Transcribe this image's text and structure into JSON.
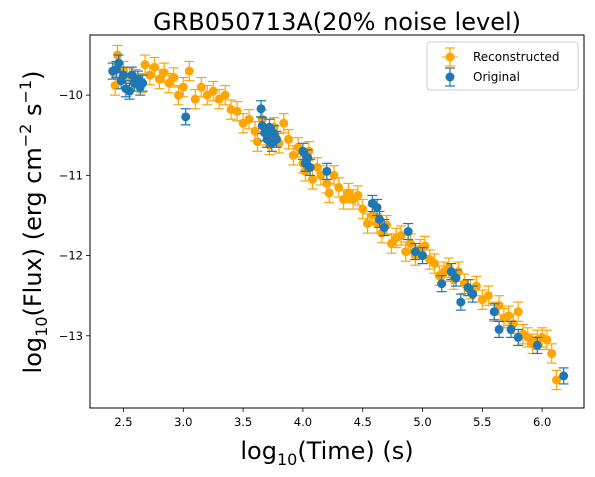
{
  "chart_data": {
    "type": "scatter",
    "title": "GRB050713A(20% noise level)",
    "xlabel": "log10(Time) (s)",
    "xlabel_parts": {
      "pre": "log",
      "sub": "10",
      "post": "(Time) (s)"
    },
    "ylabel": "log10(Flux) (erg cm^-2 s^-1)",
    "ylabel_parts": {
      "pre": "log",
      "sub": "10",
      "mid": "(Flux) (erg cm",
      "sup1": "−2",
      "mid2": " s",
      "sup2": "−1",
      "post": ")"
    },
    "xlim": [
      2.22,
      6.35
    ],
    "ylim": [
      -13.9,
      -9.25
    ],
    "xticks": [
      2.5,
      3.0,
      3.5,
      4.0,
      4.5,
      5.0,
      5.5,
      6.0
    ],
    "xtick_labels": [
      "2.5",
      "3.0",
      "3.5",
      "4.0",
      "4.5",
      "5.0",
      "5.5",
      "6.0"
    ],
    "yticks": [
      -10,
      -11,
      -12,
      -13
    ],
    "ytick_labels": [
      "−10",
      "−11",
      "−12",
      "−13"
    ],
    "grid": false,
    "legend_position": "top-right",
    "series": [
      {
        "name": "Reconstructed",
        "color": "#FFA500",
        "err": 0.12,
        "points": [
          [
            2.43,
            -9.88
          ],
          [
            2.45,
            -9.5
          ],
          [
            2.5,
            -9.7
          ],
          [
            2.55,
            -9.78
          ],
          [
            2.6,
            -9.8
          ],
          [
            2.65,
            -9.85
          ],
          [
            2.68,
            -9.62
          ],
          [
            2.72,
            -9.75
          ],
          [
            2.76,
            -9.65
          ],
          [
            2.8,
            -9.8
          ],
          [
            2.84,
            -9.72
          ],
          [
            2.88,
            -9.85
          ],
          [
            2.92,
            -9.78
          ],
          [
            2.96,
            -10.0
          ],
          [
            3.0,
            -9.9
          ],
          [
            3.05,
            -9.7
          ],
          [
            3.1,
            -10.05
          ],
          [
            3.15,
            -9.9
          ],
          [
            3.2,
            -10.0
          ],
          [
            3.25,
            -9.95
          ],
          [
            3.3,
            -10.05
          ],
          [
            3.35,
            -10.0
          ],
          [
            3.4,
            -10.18
          ],
          [
            3.45,
            -10.2
          ],
          [
            3.5,
            -10.35
          ],
          [
            3.55,
            -10.3
          ],
          [
            3.6,
            -10.45
          ],
          [
            3.62,
            -10.58
          ],
          [
            3.66,
            -10.3
          ],
          [
            3.7,
            -10.5
          ],
          [
            3.72,
            -10.62
          ],
          [
            3.76,
            -10.4
          ],
          [
            3.8,
            -10.6
          ],
          [
            3.84,
            -10.35
          ],
          [
            3.88,
            -10.55
          ],
          [
            3.92,
            -10.75
          ],
          [
            3.96,
            -10.65
          ],
          [
            4.0,
            -10.85
          ],
          [
            4.02,
            -10.95
          ],
          [
            4.05,
            -10.7
          ],
          [
            4.08,
            -11.05
          ],
          [
            4.12,
            -10.9
          ],
          [
            4.15,
            -11.0
          ],
          [
            4.2,
            -11.1
          ],
          [
            4.22,
            -11.22
          ],
          [
            4.26,
            -11.0
          ],
          [
            4.3,
            -11.15
          ],
          [
            4.34,
            -11.3
          ],
          [
            4.38,
            -11.22
          ],
          [
            4.42,
            -11.3
          ],
          [
            4.46,
            -11.25
          ],
          [
            4.5,
            -11.42
          ],
          [
            4.54,
            -11.6
          ],
          [
            4.58,
            -11.5
          ],
          [
            4.62,
            -11.6
          ],
          [
            4.66,
            -11.72
          ],
          [
            4.7,
            -11.62
          ],
          [
            4.74,
            -11.85
          ],
          [
            4.78,
            -11.78
          ],
          [
            4.82,
            -11.75
          ],
          [
            4.86,
            -11.95
          ],
          [
            4.9,
            -11.85
          ],
          [
            4.94,
            -12.0
          ],
          [
            4.98,
            -11.92
          ],
          [
            5.02,
            -11.88
          ],
          [
            5.06,
            -12.05
          ],
          [
            5.1,
            -12.1
          ],
          [
            5.14,
            -12.25
          ],
          [
            5.18,
            -12.2
          ],
          [
            5.22,
            -12.15
          ],
          [
            5.26,
            -12.3
          ],
          [
            5.3,
            -12.2
          ],
          [
            5.35,
            -12.35
          ],
          [
            5.4,
            -12.42
          ],
          [
            5.45,
            -12.38
          ],
          [
            5.5,
            -12.55
          ],
          [
            5.55,
            -12.5
          ],
          [
            5.6,
            -12.7
          ],
          [
            5.64,
            -12.62
          ],
          [
            5.68,
            -12.78
          ],
          [
            5.72,
            -12.75
          ],
          [
            5.76,
            -12.85
          ],
          [
            5.8,
            -12.7
          ],
          [
            5.84,
            -12.98
          ],
          [
            5.88,
            -13.02
          ],
          [
            5.92,
            -13.1
          ],
          [
            5.96,
            -13.05
          ],
          [
            6.0,
            -13.02
          ],
          [
            6.04,
            -13.05
          ],
          [
            6.08,
            -13.22
          ],
          [
            6.12,
            -13.55
          ]
        ]
      },
      {
        "name": "Original",
        "color": "#1F77B4",
        "err": 0.1,
        "points": [
          [
            2.41,
            -9.7
          ],
          [
            2.44,
            -9.68
          ],
          [
            2.46,
            -9.6
          ],
          [
            2.48,
            -9.82
          ],
          [
            2.5,
            -9.75
          ],
          [
            2.52,
            -9.92
          ],
          [
            2.55,
            -9.95
          ],
          [
            2.57,
            -9.75
          ],
          [
            2.59,
            -9.85
          ],
          [
            2.62,
            -9.8
          ],
          [
            2.64,
            -9.9
          ],
          [
            2.66,
            -9.85
          ],
          [
            3.02,
            -10.27
          ],
          [
            3.65,
            -10.17
          ],
          [
            3.66,
            -10.38
          ],
          [
            3.68,
            -10.47
          ],
          [
            3.7,
            -10.55
          ],
          [
            3.72,
            -10.4
          ],
          [
            3.74,
            -10.6
          ],
          [
            3.76,
            -10.48
          ],
          [
            3.78,
            -10.55
          ],
          [
            4.0,
            -10.7
          ],
          [
            4.02,
            -10.85
          ],
          [
            4.04,
            -10.78
          ],
          [
            4.06,
            -10.9
          ],
          [
            4.2,
            -10.95
          ],
          [
            4.58,
            -11.35
          ],
          [
            4.62,
            -11.4
          ],
          [
            4.64,
            -11.55
          ],
          [
            4.68,
            -11.65
          ],
          [
            4.88,
            -11.7
          ],
          [
            4.94,
            -11.95
          ],
          [
            5.0,
            -12.0
          ],
          [
            5.16,
            -12.35
          ],
          [
            5.24,
            -12.2
          ],
          [
            5.28,
            -12.28
          ],
          [
            5.32,
            -12.58
          ],
          [
            5.38,
            -12.4
          ],
          [
            5.42,
            -12.48
          ],
          [
            5.6,
            -12.7
          ],
          [
            5.64,
            -12.92
          ],
          [
            5.74,
            -12.92
          ],
          [
            5.8,
            -13.02
          ],
          [
            5.96,
            -13.12
          ],
          [
            6.18,
            -13.5
          ]
        ]
      }
    ]
  }
}
